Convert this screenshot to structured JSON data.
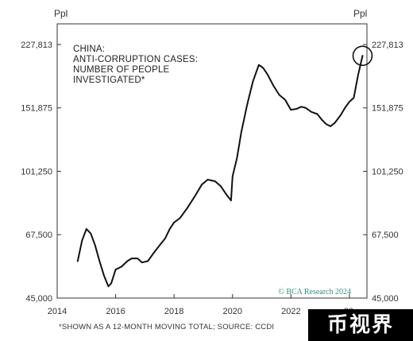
{
  "chart_data": {
    "type": "line",
    "title_lines": [
      "CHINA:",
      "ANTI-CORRUPTION CASES:",
      "NUMBER OF PEOPLE",
      "INVESTIGATED*"
    ],
    "unit_left": "Ppl",
    "unit_right": "Ppl",
    "yscale": "log",
    "ylim": [
      45000,
      260000
    ],
    "xlim": [
      2014,
      2024.6
    ],
    "yticks": [
      45000,
      67500,
      101250,
      151875,
      227813
    ],
    "ytick_labels": [
      "45,000",
      "67,500",
      "101,250",
      "151,875",
      "227,813"
    ],
    "xticks": [
      2014,
      2016,
      2018,
      2020,
      2022
    ],
    "xtick_labels": [
      "2014",
      "2016",
      "2018",
      "2020",
      "2022"
    ],
    "x_partial_label": "20",
    "credit": "© BCA Research 2024",
    "footnote": "*SHOWN AS A 12-MONTH MOVING TOTAL; SOURCE: CCDI",
    "highlight": {
      "x": 2024.45,
      "y": 212000
    },
    "series": [
      {
        "points": [
          [
            2014.7,
            57000
          ],
          [
            2014.85,
            65000
          ],
          [
            2015.0,
            70000
          ],
          [
            2015.15,
            68000
          ],
          [
            2015.3,
            63000
          ],
          [
            2015.45,
            57000
          ],
          [
            2015.6,
            52000
          ],
          [
            2015.75,
            48500
          ],
          [
            2015.85,
            49500
          ],
          [
            2016.0,
            54000
          ],
          [
            2016.2,
            55000
          ],
          [
            2016.4,
            57000
          ],
          [
            2016.55,
            58000
          ],
          [
            2016.75,
            58000
          ],
          [
            2016.9,
            56500
          ],
          [
            2017.1,
            57000
          ],
          [
            2017.3,
            60000
          ],
          [
            2017.5,
            63000
          ],
          [
            2017.7,
            66000
          ],
          [
            2017.85,
            70000
          ],
          [
            2018.0,
            73000
          ],
          [
            2018.2,
            75000
          ],
          [
            2018.45,
            80000
          ],
          [
            2018.7,
            86000
          ],
          [
            2018.95,
            93000
          ],
          [
            2019.15,
            96000
          ],
          [
            2019.4,
            95000
          ],
          [
            2019.6,
            92000
          ],
          [
            2019.8,
            87000
          ],
          [
            2019.95,
            84000
          ],
          [
            2020.0,
            98000
          ],
          [
            2020.15,
            110000
          ],
          [
            2020.3,
            130000
          ],
          [
            2020.5,
            155000
          ],
          [
            2020.7,
            180000
          ],
          [
            2020.9,
            200000
          ],
          [
            2021.05,
            196000
          ],
          [
            2021.2,
            188000
          ],
          [
            2021.4,
            175000
          ],
          [
            2021.6,
            165000
          ],
          [
            2021.8,
            160000
          ],
          [
            2022.0,
            150000
          ],
          [
            2022.2,
            151000
          ],
          [
            2022.35,
            153000
          ],
          [
            2022.5,
            152000
          ],
          [
            2022.7,
            148000
          ],
          [
            2022.9,
            146000
          ],
          [
            2023.05,
            141000
          ],
          [
            2023.2,
            137000
          ],
          [
            2023.35,
            135000
          ],
          [
            2023.5,
            138000
          ],
          [
            2023.7,
            145000
          ],
          [
            2023.85,
            152000
          ],
          [
            2024.0,
            158000
          ],
          [
            2024.15,
            162000
          ],
          [
            2024.3,
            188000
          ],
          [
            2024.45,
            212000
          ]
        ]
      }
    ]
  }
}
